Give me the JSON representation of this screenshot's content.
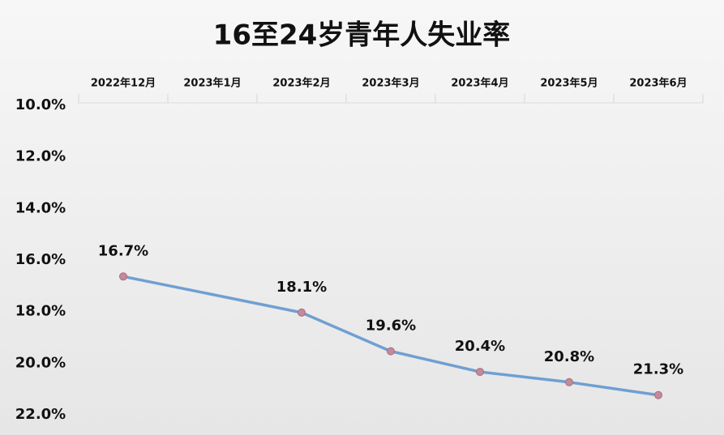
{
  "chart_data": {
    "type": "line",
    "title": "16至24岁青年人失业率",
    "categories": [
      "2022年12月",
      "2023年1月",
      "2023年2月",
      "2023年3月",
      "2023年4月",
      "2023年5月",
      "2023年6月"
    ],
    "values": [
      16.7,
      null,
      18.1,
      19.6,
      20.4,
      20.8,
      21.3
    ],
    "value_labels": [
      "16.7%",
      null,
      "18.1%",
      "19.6%",
      "20.4%",
      "20.8%",
      "21.3%"
    ],
    "color": "#6f9fd2",
    "marker_color": "#c48a9c",
    "ylim": [
      10,
      22
    ],
    "y_inverted": true,
    "connect_gaps": true,
    "yticks": [
      {
        "value": 10,
        "label": "10.0%"
      },
      {
        "value": 12,
        "label": "12.0%"
      },
      {
        "value": 14,
        "label": "14.0%"
      },
      {
        "value": 16,
        "label": "16.0%"
      },
      {
        "value": 18,
        "label": "18.0%"
      },
      {
        "value": 20,
        "label": "20.0%"
      },
      {
        "value": 22,
        "label": "22.0%"
      }
    ],
    "x_axis_position": "top"
  }
}
